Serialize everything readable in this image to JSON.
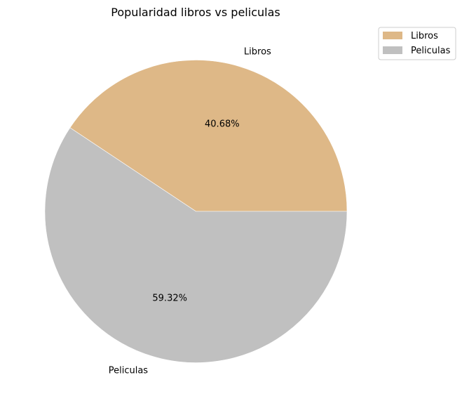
{
  "chart_data": {
    "type": "pie",
    "title": "Popularidad libros vs peliculas",
    "categories": [
      "Libros",
      "Peliculas"
    ],
    "values": [
      40.68,
      59.32
    ],
    "percent_labels": [
      "40.68%",
      "59.32%"
    ],
    "colors": [
      "#deb887",
      "#c0c0c0"
    ],
    "start_angle_deg": 0,
    "direction": "counterclockwise",
    "legend": {
      "position": "top-right",
      "entries": [
        "Libros",
        "Peliculas"
      ]
    }
  }
}
